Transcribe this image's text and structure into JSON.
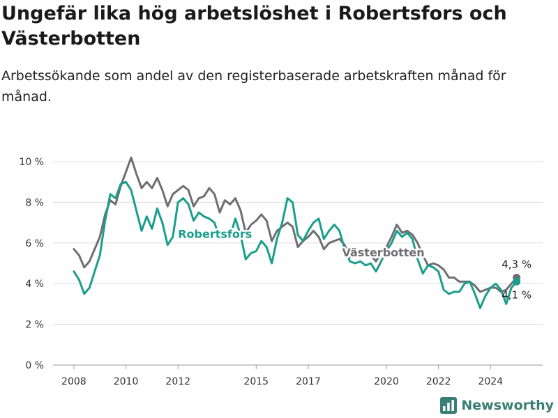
{
  "title": "Ungefär lika hög arbetslöshet i Robertsfors och Västerbotten",
  "subtitle": "Arbetssökande som andel av den registerbaserade arbetskraften månad för månad.",
  "brand": {
    "name": "Newsworthy",
    "icon": "newsworthy-chart-icon",
    "color": "#3a7f74"
  },
  "chart_data": {
    "type": "line",
    "x_ticks": [
      "2008",
      "2010",
      "2012",
      "2015",
      "2017",
      "2020",
      "2022",
      "2024"
    ],
    "y_ticks": [
      "0 %",
      "2 %",
      "4 %",
      "6 %",
      "8 %",
      "10 %"
    ],
    "ylim": [
      0,
      10
    ],
    "xlim": [
      2007.2,
      2026.0
    ],
    "grid": true,
    "series": [
      {
        "name": "Västerbotten",
        "color": "#6e6e73",
        "end_label": "4,3 %",
        "points": [
          [
            2008.0,
            5.7
          ],
          [
            2008.2,
            5.4
          ],
          [
            2008.4,
            4.8
          ],
          [
            2008.6,
            5.1
          ],
          [
            2008.8,
            5.7
          ],
          [
            2009.0,
            6.3
          ],
          [
            2009.2,
            7.4
          ],
          [
            2009.4,
            8.1
          ],
          [
            2009.6,
            7.9
          ],
          [
            2009.8,
            8.8
          ],
          [
            2010.0,
            9.5
          ],
          [
            2010.2,
            10.2
          ],
          [
            2010.4,
            9.4
          ],
          [
            2010.6,
            8.7
          ],
          [
            2010.8,
            9.0
          ],
          [
            2011.0,
            8.7
          ],
          [
            2011.2,
            9.2
          ],
          [
            2011.4,
            8.6
          ],
          [
            2011.6,
            7.8
          ],
          [
            2011.8,
            8.4
          ],
          [
            2012.0,
            8.6
          ],
          [
            2012.2,
            8.8
          ],
          [
            2012.4,
            8.6
          ],
          [
            2012.6,
            7.8
          ],
          [
            2012.8,
            8.2
          ],
          [
            2013.0,
            8.3
          ],
          [
            2013.2,
            8.7
          ],
          [
            2013.4,
            8.4
          ],
          [
            2013.6,
            7.5
          ],
          [
            2013.8,
            8.1
          ],
          [
            2014.0,
            7.9
          ],
          [
            2014.2,
            8.2
          ],
          [
            2014.4,
            7.6
          ],
          [
            2014.6,
            6.5
          ],
          [
            2014.8,
            6.9
          ],
          [
            2015.0,
            7.1
          ],
          [
            2015.2,
            7.4
          ],
          [
            2015.4,
            7.1
          ],
          [
            2015.6,
            6.1
          ],
          [
            2015.8,
            6.6
          ],
          [
            2016.0,
            6.8
          ],
          [
            2016.2,
            7.0
          ],
          [
            2016.4,
            6.8
          ],
          [
            2016.6,
            5.8
          ],
          [
            2016.8,
            6.1
          ],
          [
            2017.0,
            6.3
          ],
          [
            2017.2,
            6.6
          ],
          [
            2017.4,
            6.3
          ],
          [
            2017.6,
            5.7
          ],
          [
            2017.8,
            6.0
          ],
          [
            2018.0,
            6.1
          ],
          [
            2018.2,
            6.2
          ],
          [
            2018.4,
            5.9
          ],
          [
            2018.6,
            5.3
          ],
          [
            2018.8,
            5.4
          ],
          [
            2019.0,
            5.4
          ],
          [
            2019.2,
            5.6
          ],
          [
            2019.4,
            5.4
          ],
          [
            2019.6,
            5.1
          ],
          [
            2019.8,
            5.5
          ],
          [
            2020.0,
            5.8
          ],
          [
            2020.2,
            6.3
          ],
          [
            2020.4,
            6.9
          ],
          [
            2020.6,
            6.5
          ],
          [
            2020.8,
            6.6
          ],
          [
            2021.0,
            6.4
          ],
          [
            2021.2,
            6.0
          ],
          [
            2021.4,
            5.4
          ],
          [
            2021.6,
            4.9
          ],
          [
            2021.8,
            5.0
          ],
          [
            2022.0,
            4.9
          ],
          [
            2022.2,
            4.7
          ],
          [
            2022.4,
            4.3
          ],
          [
            2022.6,
            4.3
          ],
          [
            2022.8,
            4.1
          ],
          [
            2023.0,
            4.1
          ],
          [
            2023.2,
            4.1
          ],
          [
            2023.4,
            3.9
          ],
          [
            2023.6,
            3.6
          ],
          [
            2023.8,
            3.7
          ],
          [
            2024.0,
            3.8
          ],
          [
            2024.2,
            3.8
          ],
          [
            2024.4,
            3.6
          ],
          [
            2024.6,
            3.7
          ],
          [
            2024.8,
            4.0
          ],
          [
            2025.0,
            4.3
          ]
        ]
      },
      {
        "name": "Robertsfors",
        "color": "#1a9e8c",
        "end_label": "4,1 %",
        "points": [
          [
            2008.0,
            4.6
          ],
          [
            2008.2,
            4.2
          ],
          [
            2008.4,
            3.5
          ],
          [
            2008.6,
            3.8
          ],
          [
            2008.8,
            4.6
          ],
          [
            2009.0,
            5.4
          ],
          [
            2009.2,
            7.1
          ],
          [
            2009.4,
            8.4
          ],
          [
            2009.6,
            8.2
          ],
          [
            2009.8,
            8.9
          ],
          [
            2010.0,
            9.0
          ],
          [
            2010.2,
            8.6
          ],
          [
            2010.4,
            7.6
          ],
          [
            2010.6,
            6.6
          ],
          [
            2010.8,
            7.3
          ],
          [
            2011.0,
            6.7
          ],
          [
            2011.2,
            7.7
          ],
          [
            2011.4,
            7.0
          ],
          [
            2011.6,
            5.9
          ],
          [
            2011.8,
            6.3
          ],
          [
            2012.0,
            8.0
          ],
          [
            2012.2,
            8.2
          ],
          [
            2012.4,
            7.9
          ],
          [
            2012.6,
            7.1
          ],
          [
            2012.8,
            7.5
          ],
          [
            2013.0,
            7.3
          ],
          [
            2013.2,
            7.2
          ],
          [
            2013.4,
            7.0
          ],
          [
            2013.6,
            6.2
          ],
          [
            2013.8,
            6.6
          ],
          [
            2014.0,
            6.3
          ],
          [
            2014.2,
            7.2
          ],
          [
            2014.4,
            6.4
          ],
          [
            2014.6,
            5.2
          ],
          [
            2014.8,
            5.5
          ],
          [
            2015.0,
            5.6
          ],
          [
            2015.2,
            6.1
          ],
          [
            2015.4,
            5.8
          ],
          [
            2015.6,
            5.0
          ],
          [
            2015.8,
            6.2
          ],
          [
            2016.0,
            7.0
          ],
          [
            2016.2,
            8.2
          ],
          [
            2016.4,
            8.0
          ],
          [
            2016.6,
            6.4
          ],
          [
            2016.8,
            6.1
          ],
          [
            2017.0,
            6.6
          ],
          [
            2017.2,
            7.0
          ],
          [
            2017.4,
            7.2
          ],
          [
            2017.6,
            6.2
          ],
          [
            2017.8,
            6.6
          ],
          [
            2018.0,
            6.9
          ],
          [
            2018.2,
            6.6
          ],
          [
            2018.4,
            5.7
          ],
          [
            2018.6,
            5.1
          ],
          [
            2018.8,
            5.0
          ],
          [
            2019.0,
            5.1
          ],
          [
            2019.2,
            4.9
          ],
          [
            2019.4,
            5.0
          ],
          [
            2019.6,
            4.6
          ],
          [
            2019.8,
            5.1
          ],
          [
            2020.0,
            5.6
          ],
          [
            2020.2,
            6.0
          ],
          [
            2020.4,
            6.6
          ],
          [
            2020.6,
            6.3
          ],
          [
            2020.8,
            6.5
          ],
          [
            2021.0,
            6.2
          ],
          [
            2021.2,
            5.2
          ],
          [
            2021.4,
            4.5
          ],
          [
            2021.6,
            4.9
          ],
          [
            2021.8,
            4.8
          ],
          [
            2022.0,
            4.6
          ],
          [
            2022.2,
            3.7
          ],
          [
            2022.4,
            3.5
          ],
          [
            2022.6,
            3.6
          ],
          [
            2022.8,
            3.6
          ],
          [
            2023.0,
            4.0
          ],
          [
            2023.2,
            4.1
          ],
          [
            2023.4,
            3.5
          ],
          [
            2023.6,
            2.8
          ],
          [
            2023.8,
            3.4
          ],
          [
            2024.0,
            3.8
          ],
          [
            2024.2,
            4.0
          ],
          [
            2024.4,
            3.7
          ],
          [
            2024.6,
            3.0
          ],
          [
            2024.8,
            3.8
          ],
          [
            2025.0,
            4.1
          ]
        ]
      }
    ]
  }
}
